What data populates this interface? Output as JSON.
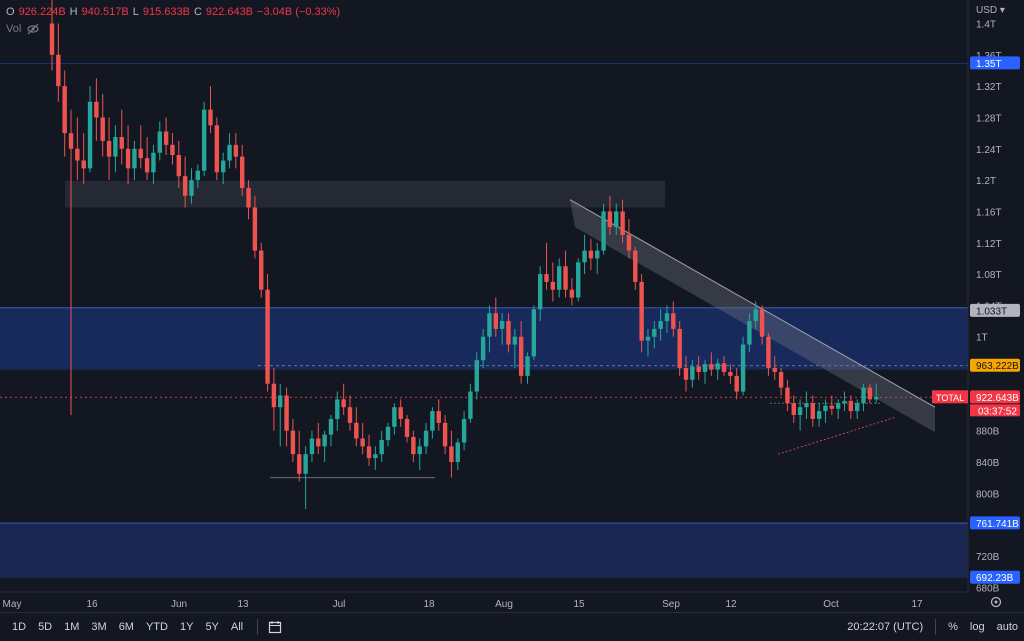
{
  "legend": {
    "open_key": "O",
    "open": "926.224B",
    "high_key": "H",
    "high": "940.517B",
    "low_key": "L",
    "low": "915.633B",
    "close_key": "C",
    "close": "922.643B",
    "change": "−3.04B (−0.33%)",
    "vol_label": "Vol"
  },
  "axis": {
    "currency": "USD",
    "y_ticks": [
      "1.4T",
      "1.36T",
      "1.32T",
      "1.28T",
      "1.24T",
      "1.2T",
      "1.16T",
      "1.12T",
      "1.08T",
      "1.04T",
      "1T",
      "880B",
      "840B",
      "800B",
      "760B",
      "720B",
      "680B"
    ],
    "x_ticks": [
      "May",
      "16",
      "Jun",
      "13",
      "Jul",
      "18",
      "Aug",
      "15",
      "Sep",
      "12",
      "Oct",
      "17"
    ]
  },
  "price_labels": {
    "level_1": "1.35T",
    "level_2": "1.033T",
    "level_3": "963.222B",
    "total_label": "TOTAL",
    "current": "922.643B",
    "countdown": "03:37:52",
    "level_4": "761.741B",
    "level_5": "692.23B"
  },
  "toolbar": {
    "ranges": [
      "1D",
      "5D",
      "1M",
      "3M",
      "6M",
      "YTD",
      "1Y",
      "5Y",
      "All"
    ],
    "time": "20:22:07 (UTC)",
    "percent": "%",
    "log": "log",
    "auto": "auto"
  },
  "colors": {
    "up": "#26a69a",
    "down": "#ef5350",
    "bg": "#131722",
    "zone": "#1e3a8a",
    "accent_blue": "#2962ff",
    "orange": "#f7a600",
    "red_label": "#f23645"
  },
  "chart_data": {
    "type": "candlestick",
    "title": "TOTAL",
    "ylabel": "USD",
    "ylim": [
      675,
      1410
    ],
    "candles": [
      [
        1400,
        1430,
        1340,
        1360
      ],
      [
        1360,
        1400,
        1300,
        1320
      ],
      [
        1320,
        1340,
        1230,
        1260
      ],
      [
        1260,
        1290,
        900,
        1240
      ],
      [
        1240,
        1280,
        1200,
        1225
      ],
      [
        1225,
        1260,
        1195,
        1215
      ],
      [
        1215,
        1320,
        1210,
        1300
      ],
      [
        1300,
        1330,
        1250,
        1280
      ],
      [
        1280,
        1310,
        1230,
        1250
      ],
      [
        1250,
        1280,
        1200,
        1230
      ],
      [
        1230,
        1270,
        1210,
        1255
      ],
      [
        1255,
        1290,
        1220,
        1240
      ],
      [
        1240,
        1270,
        1195,
        1215
      ],
      [
        1215,
        1250,
        1200,
        1240
      ],
      [
        1240,
        1270,
        1215,
        1228
      ],
      [
        1228,
        1255,
        1200,
        1210
      ],
      [
        1210,
        1245,
        1195,
        1235
      ],
      [
        1235,
        1275,
        1225,
        1262
      ],
      [
        1262,
        1280,
        1232,
        1245
      ],
      [
        1245,
        1260,
        1220,
        1232
      ],
      [
        1232,
        1250,
        1190,
        1205
      ],
      [
        1205,
        1230,
        1165,
        1180
      ],
      [
        1180,
        1215,
        1170,
        1200
      ],
      [
        1200,
        1220,
        1190,
        1212
      ],
      [
        1212,
        1300,
        1205,
        1290
      ],
      [
        1290,
        1320,
        1260,
        1270
      ],
      [
        1270,
        1280,
        1200,
        1210
      ],
      [
        1210,
        1235,
        1195,
        1225
      ],
      [
        1225,
        1260,
        1215,
        1245
      ],
      [
        1245,
        1260,
        1215,
        1230
      ],
      [
        1230,
        1245,
        1180,
        1190
      ],
      [
        1190,
        1200,
        1150,
        1165
      ],
      [
        1165,
        1180,
        1100,
        1110
      ],
      [
        1110,
        1120,
        1050,
        1060
      ],
      [
        1060,
        1080,
        930,
        940
      ],
      [
        940,
        960,
        880,
        910
      ],
      [
        910,
        940,
        860,
        925
      ],
      [
        925,
        935,
        860,
        880
      ],
      [
        880,
        895,
        840,
        850
      ],
      [
        850,
        880,
        815,
        825
      ],
      [
        825,
        860,
        780,
        850
      ],
      [
        850,
        880,
        840,
        870
      ],
      [
        870,
        890,
        850,
        860
      ],
      [
        860,
        880,
        840,
        875
      ],
      [
        875,
        900,
        860,
        895
      ],
      [
        895,
        930,
        880,
        920
      ],
      [
        920,
        940,
        900,
        910
      ],
      [
        910,
        925,
        880,
        890
      ],
      [
        890,
        910,
        860,
        870
      ],
      [
        870,
        890,
        850,
        860
      ],
      [
        860,
        875,
        835,
        845
      ],
      [
        845,
        860,
        830,
        850
      ],
      [
        850,
        880,
        840,
        868
      ],
      [
        868,
        890,
        860,
        885
      ],
      [
        885,
        915,
        875,
        910
      ],
      [
        910,
        920,
        885,
        895
      ],
      [
        895,
        900,
        865,
        872
      ],
      [
        872,
        880,
        840,
        850
      ],
      [
        850,
        870,
        830,
        860
      ],
      [
        860,
        890,
        850,
        880
      ],
      [
        880,
        910,
        870,
        905
      ],
      [
        905,
        920,
        880,
        890
      ],
      [
        890,
        900,
        850,
        860
      ],
      [
        860,
        880,
        820,
        840
      ],
      [
        840,
        870,
        830,
        865
      ],
      [
        865,
        905,
        855,
        895
      ],
      [
        895,
        940,
        890,
        930
      ],
      [
        930,
        980,
        920,
        970
      ],
      [
        970,
        1010,
        960,
        1000
      ],
      [
        1000,
        1040,
        980,
        1030
      ],
      [
        1030,
        1050,
        1000,
        1010
      ],
      [
        1010,
        1030,
        990,
        1020
      ],
      [
        1020,
        1030,
        980,
        990
      ],
      [
        990,
        1010,
        960,
        1000
      ],
      [
        1000,
        1020,
        940,
        950
      ],
      [
        950,
        980,
        940,
        975
      ],
      [
        975,
        1040,
        970,
        1035
      ],
      [
        1035,
        1090,
        1020,
        1080
      ],
      [
        1080,
        1120,
        1060,
        1070
      ],
      [
        1070,
        1095,
        1045,
        1060
      ],
      [
        1060,
        1100,
        1050,
        1090
      ],
      [
        1090,
        1110,
        1050,
        1060
      ],
      [
        1060,
        1075,
        1040,
        1050
      ],
      [
        1050,
        1100,
        1045,
        1095
      ],
      [
        1095,
        1130,
        1080,
        1110
      ],
      [
        1110,
        1125,
        1085,
        1100
      ],
      [
        1100,
        1120,
        1080,
        1110
      ],
      [
        1110,
        1170,
        1105,
        1160
      ],
      [
        1160,
        1180,
        1130,
        1140
      ],
      [
        1140,
        1170,
        1130,
        1160
      ],
      [
        1160,
        1175,
        1120,
        1130
      ],
      [
        1130,
        1150,
        1100,
        1110
      ],
      [
        1110,
        1115,
        1060,
        1070
      ],
      [
        1070,
        1080,
        980,
        995
      ],
      [
        995,
        1010,
        975,
        1000
      ],
      [
        1000,
        1020,
        985,
        1010
      ],
      [
        1010,
        1035,
        995,
        1020
      ],
      [
        1020,
        1040,
        1005,
        1030
      ],
      [
        1030,
        1045,
        1000,
        1010
      ],
      [
        1010,
        1020,
        950,
        960
      ],
      [
        960,
        975,
        930,
        945
      ],
      [
        945,
        970,
        935,
        962
      ],
      [
        962,
        975,
        945,
        955
      ],
      [
        955,
        970,
        940,
        965
      ],
      [
        965,
        980,
        950,
        958
      ],
      [
        958,
        972,
        945,
        966
      ],
      [
        966,
        975,
        950,
        955
      ],
      [
        955,
        965,
        940,
        950
      ],
      [
        950,
        960,
        920,
        930
      ],
      [
        930,
        1000,
        925,
        990
      ],
      [
        990,
        1030,
        980,
        1020
      ],
      [
        1020,
        1045,
        1010,
        1035
      ],
      [
        1035,
        1040,
        990,
        1000
      ],
      [
        1000,
        1005,
        950,
        960
      ],
      [
        960,
        975,
        945,
        955
      ],
      [
        955,
        960,
        925,
        935
      ],
      [
        935,
        945,
        905,
        915
      ],
      [
        915,
        925,
        890,
        900
      ],
      [
        900,
        920,
        880,
        910
      ],
      [
        910,
        930,
        895,
        915
      ],
      [
        915,
        925,
        885,
        895
      ],
      [
        895,
        915,
        885,
        905
      ],
      [
        905,
        920,
        890,
        912
      ],
      [
        912,
        925,
        900,
        908
      ],
      [
        908,
        920,
        895,
        915
      ],
      [
        915,
        930,
        905,
        918
      ],
      [
        918,
        925,
        895,
        905
      ],
      [
        905,
        920,
        895,
        915
      ],
      [
        915,
        940,
        905,
        935
      ],
      [
        935,
        940,
        915,
        920
      ],
      [
        920,
        940,
        915,
        923
      ]
    ]
  }
}
